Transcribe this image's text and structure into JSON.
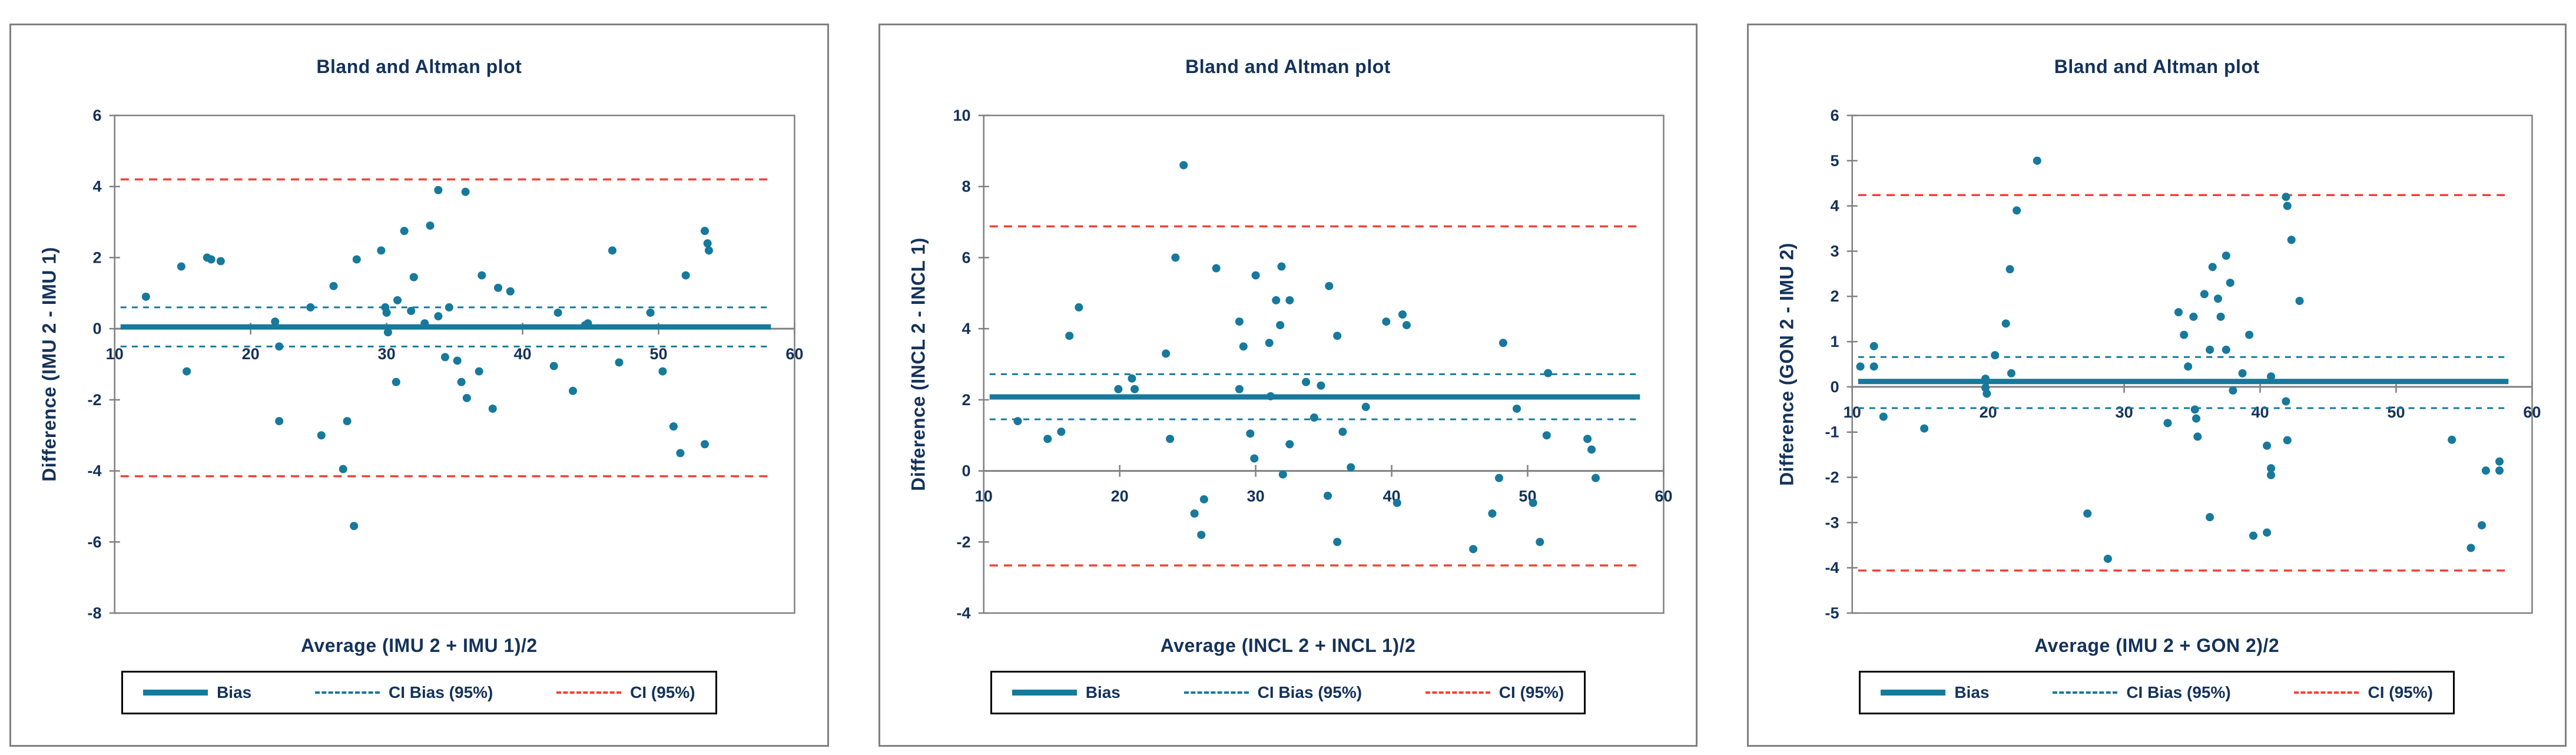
{
  "colors": {
    "series_teal": "#17799c",
    "ci_red": "#ef4338",
    "axis_gray": "#808080",
    "text_navy": "#14325a",
    "legend_border": "#000000",
    "panel_border": "#808080",
    "background": "#ffffff"
  },
  "legend": {
    "items": [
      {
        "label": "Bias",
        "swatch": "solid-teal-line"
      },
      {
        "label": "CI Bias (95%)",
        "swatch": "dashed-teal-line"
      },
      {
        "label": "CI (95%)",
        "swatch": "dashed-red-line"
      }
    ]
  },
  "chart_data": [
    {
      "type": "scatter",
      "title": "Bland and Altman plot",
      "xlabel": "Average (IMU 2 + IMU 1)/2",
      "ylabel": "Difference (IMU 2 - IMU 1)",
      "xlim": [
        10,
        60
      ],
      "xstep": 10,
      "ylim": [
        -8,
        6
      ],
      "ystep": 2,
      "grid": false,
      "legend_position": "bottom",
      "bias": 0.05,
      "ci_bias": [
        0.6,
        -0.5
      ],
      "ci": [
        4.2,
        -4.15
      ],
      "points": [
        [
          12.3,
          0.9
        ],
        [
          14.9,
          1.75
        ],
        [
          15.3,
          -1.2
        ],
        [
          16.8,
          2.0
        ],
        [
          17.1,
          1.95
        ],
        [
          17.8,
          1.9
        ],
        [
          21.8,
          0.2
        ],
        [
          22.1,
          -0.5
        ],
        [
          22.1,
          -2.6
        ],
        [
          24.4,
          0.6
        ],
        [
          25.2,
          -3.0
        ],
        [
          26.1,
          1.2
        ],
        [
          26.8,
          -3.95
        ],
        [
          27.1,
          -2.6
        ],
        [
          27.6,
          -5.55
        ],
        [
          27.8,
          1.95
        ],
        [
          29.6,
          2.2
        ],
        [
          29.9,
          0.6
        ],
        [
          30.0,
          0.45
        ],
        [
          30.1,
          -0.1
        ],
        [
          30.8,
          0.8
        ],
        [
          30.7,
          -1.5
        ],
        [
          31.3,
          2.75
        ],
        [
          31.8,
          0.5
        ],
        [
          32.0,
          1.45
        ],
        [
          32.8,
          0.15
        ],
        [
          33.2,
          2.9
        ],
        [
          33.8,
          3.9
        ],
        [
          33.8,
          0.35
        ],
        [
          34.3,
          -0.8
        ],
        [
          34.6,
          0.6
        ],
        [
          35.2,
          -0.9
        ],
        [
          35.5,
          -1.5
        ],
        [
          35.8,
          3.85
        ],
        [
          35.9,
          -1.95
        ],
        [
          36.8,
          -1.2
        ],
        [
          37.0,
          1.5
        ],
        [
          37.8,
          -2.25
        ],
        [
          38.2,
          1.15
        ],
        [
          39.1,
          1.05
        ],
        [
          42.3,
          -1.05
        ],
        [
          42.6,
          0.45
        ],
        [
          43.7,
          -1.75
        ],
        [
          44.6,
          0.1
        ],
        [
          44.8,
          0.15
        ],
        [
          46.6,
          2.2
        ],
        [
          47.1,
          -0.95
        ],
        [
          49.4,
          0.45
        ],
        [
          50.3,
          -1.2
        ],
        [
          51.1,
          -2.75
        ],
        [
          51.6,
          -3.5
        ],
        [
          52.0,
          1.5
        ],
        [
          53.4,
          2.75
        ],
        [
          53.6,
          2.4
        ],
        [
          53.7,
          2.2
        ],
        [
          53.4,
          -3.25
        ]
      ]
    },
    {
      "type": "scatter",
      "title": "Bland and Altman plot",
      "xlabel": "Average (INCL 2 + INCL 1)/2",
      "ylabel": "Difference (INCL 2 - INCL 1)",
      "xlim": [
        10,
        60
      ],
      "xstep": 10,
      "ylim": [
        -4,
        10
      ],
      "ystep": 2,
      "grid": false,
      "legend_position": "bottom",
      "bias": 2.08,
      "ci_bias": [
        2.72,
        1.45
      ],
      "ci": [
        6.88,
        -2.66
      ],
      "points": [
        [
          12.5,
          1.4
        ],
        [
          14.7,
          0.9
        ],
        [
          15.7,
          1.1
        ],
        [
          16.3,
          3.8
        ],
        [
          17.0,
          4.6
        ],
        [
          19.9,
          2.3
        ],
        [
          20.9,
          2.6
        ],
        [
          21.1,
          2.3
        ],
        [
          23.4,
          3.3
        ],
        [
          23.7,
          0.9
        ],
        [
          24.1,
          6.0
        ],
        [
          24.7,
          8.6
        ],
        [
          25.5,
          -1.2
        ],
        [
          26.0,
          -1.8
        ],
        [
          26.2,
          -0.8
        ],
        [
          27.1,
          5.7
        ],
        [
          28.8,
          4.2
        ],
        [
          28.8,
          2.3
        ],
        [
          29.1,
          3.5
        ],
        [
          29.6,
          1.05
        ],
        [
          29.9,
          0.35
        ],
        [
          30.0,
          5.5
        ],
        [
          31.0,
          3.6
        ],
        [
          31.1,
          2.1
        ],
        [
          31.5,
          4.8
        ],
        [
          31.8,
          4.1
        ],
        [
          31.9,
          5.75
        ],
        [
          32.5,
          4.8
        ],
        [
          32.0,
          -0.1
        ],
        [
          32.5,
          0.75
        ],
        [
          33.7,
          2.5
        ],
        [
          34.3,
          1.5
        ],
        [
          34.8,
          2.4
        ],
        [
          35.3,
          -0.7
        ],
        [
          35.4,
          5.2
        ],
        [
          36.0,
          3.8
        ],
        [
          36.0,
          -2.0
        ],
        [
          36.4,
          1.1
        ],
        [
          37.0,
          0.1
        ],
        [
          38.1,
          1.8
        ],
        [
          39.6,
          4.2
        ],
        [
          40.4,
          -0.9
        ],
        [
          40.8,
          4.4
        ],
        [
          41.1,
          4.1
        ],
        [
          46.0,
          -2.2
        ],
        [
          47.4,
          -1.2
        ],
        [
          47.9,
          -0.2
        ],
        [
          48.2,
          3.6
        ],
        [
          49.2,
          1.75
        ],
        [
          50.4,
          -0.9
        ],
        [
          50.9,
          -2.0
        ],
        [
          51.4,
          1.0
        ],
        [
          51.5,
          2.75
        ],
        [
          54.4,
          0.9
        ],
        [
          54.7,
          0.6
        ],
        [
          55.0,
          -0.2
        ]
      ]
    },
    {
      "type": "scatter",
      "title": "Bland and Altman plot",
      "xlabel": "Average (IMU 2 + GON 2)/2",
      "ylabel": "Difference (GON 2 - IMU 2)",
      "xlim": [
        10,
        60
      ],
      "xstep": 10,
      "ylim": [
        -5,
        6
      ],
      "ystep": 1,
      "grid": false,
      "legend_position": "bottom",
      "bias": 0.12,
      "ci_bias": [
        0.66,
        -0.47
      ],
      "ci": [
        4.24,
        -4.06
      ],
      "points": [
        [
          10.6,
          0.45
        ],
        [
          11.6,
          0.45
        ],
        [
          11.6,
          0.9
        ],
        [
          12.3,
          -0.66
        ],
        [
          15.3,
          -0.92
        ],
        [
          19.8,
          0.18
        ],
        [
          19.8,
          -0.02
        ],
        [
          19.9,
          -0.15
        ],
        [
          20.5,
          0.7
        ],
        [
          21.3,
          1.4
        ],
        [
          21.6,
          2.6
        ],
        [
          21.7,
          0.3
        ],
        [
          22.1,
          3.9
        ],
        [
          23.6,
          5.0
        ],
        [
          27.3,
          -2.8
        ],
        [
          28.8,
          -3.8
        ],
        [
          33.2,
          -0.8
        ],
        [
          34.0,
          1.65
        ],
        [
          34.4,
          1.15
        ],
        [
          34.7,
          0.45
        ],
        [
          35.1,
          1.55
        ],
        [
          35.2,
          -0.5
        ],
        [
          35.3,
          -0.7
        ],
        [
          35.4,
          -1.1
        ],
        [
          35.9,
          2.05
        ],
        [
          36.3,
          0.82
        ],
        [
          36.3,
          -2.88
        ],
        [
          36.5,
          2.65
        ],
        [
          36.9,
          1.95
        ],
        [
          37.1,
          1.55
        ],
        [
          37.5,
          2.9
        ],
        [
          37.5,
          0.82
        ],
        [
          37.8,
          2.3
        ],
        [
          38.0,
          -0.08
        ],
        [
          38.7,
          0.3
        ],
        [
          39.2,
          1.15
        ],
        [
          39.5,
          -3.29
        ],
        [
          40.5,
          -3.22
        ],
        [
          40.5,
          -1.3
        ],
        [
          40.8,
          0.23
        ],
        [
          40.8,
          -1.8
        ],
        [
          40.8,
          -1.95
        ],
        [
          41.9,
          4.2
        ],
        [
          42.0,
          4.0
        ],
        [
          41.9,
          -0.32
        ],
        [
          42.0,
          -1.18
        ],
        [
          42.3,
          3.25
        ],
        [
          42.9,
          1.9
        ],
        [
          54.1,
          -1.17
        ],
        [
          55.5,
          -3.56
        ],
        [
          56.3,
          -3.06
        ],
        [
          56.6,
          -1.85
        ],
        [
          57.6,
          -1.65
        ],
        [
          57.6,
          -1.85
        ]
      ]
    }
  ]
}
